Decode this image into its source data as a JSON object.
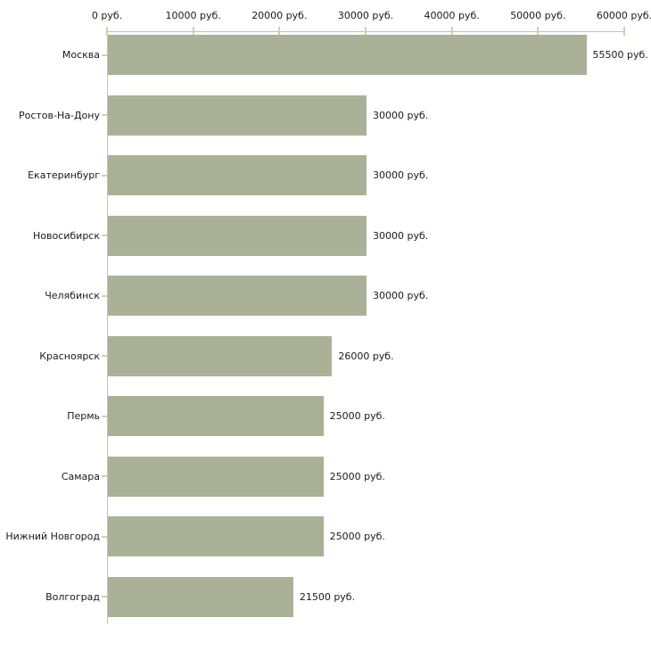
{
  "chart_data": {
    "type": "bar",
    "orientation": "horizontal",
    "title": "",
    "categories": [
      "Москва",
      "Ростов-На-Дону",
      "Екатеринбург",
      "Новосибирск",
      "Челябинск",
      "Красноярск",
      "Пермь",
      "Самара",
      "Нижний Новгород",
      "Волгоград"
    ],
    "values": [
      55500,
      30000,
      30000,
      30000,
      30000,
      26000,
      25000,
      25000,
      25000,
      21500
    ],
    "value_labels": [
      "55500 руб.",
      "30000 руб.",
      "30000 руб.",
      "30000 руб.",
      "30000 руб.",
      "26000 руб.",
      "25000 руб.",
      "25000 руб.",
      "25000 руб.",
      "21500 руб."
    ],
    "x_axis": {
      "position": "top",
      "min": 0,
      "max": 60000,
      "ticks": [
        0,
        10000,
        20000,
        30000,
        40000,
        50000,
        60000
      ],
      "tick_labels": [
        "0 руб.",
        "10000 руб.",
        "20000 руб.",
        "30000 руб.",
        "40000 руб.",
        "50000 руб.",
        "60000 руб."
      ]
    },
    "grid": false,
    "legend": false,
    "colors": {
      "bar": "#abb197",
      "axis": "#c0c0c0",
      "tick": "#d6d1a0",
      "text": "#1a1a1a",
      "background": "#ffffff"
    }
  }
}
